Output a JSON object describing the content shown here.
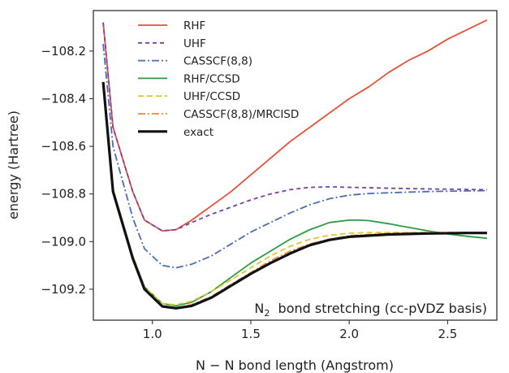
{
  "chart_data": {
    "type": "line",
    "xlabel": "N − N  bond length (Angstrom)",
    "ylabel": "energy (Hartree)",
    "xlim": [
      0.7,
      2.75
    ],
    "ylim": [
      -109.33,
      -108.03
    ],
    "xticks": [
      1.0,
      1.5,
      2.0,
      2.5
    ],
    "xtick_labels": [
      "1.0",
      "1.5",
      "2.0",
      "2.5"
    ],
    "yticks": [
      -108.2,
      -108.4,
      -108.6,
      -108.8,
      -109.0,
      -109.2
    ],
    "ytick_labels": [
      "−108.2",
      "−108.4",
      "−108.6",
      "−108.8",
      "−109.0",
      "−109.2"
    ],
    "legend_position": "top-left",
    "annotation": {
      "text_main": "N",
      "text_sub": "2",
      "text_rest": "  bond stretching (cc-pVDZ basis)",
      "position": "bottom-right"
    },
    "series": [
      {
        "name": "RHF",
        "color": "#e8503a",
        "dash": "solid",
        "width": 1.8,
        "x": [
          0.75,
          0.8,
          0.9,
          0.96,
          1.05,
          1.12,
          1.2,
          1.3,
          1.4,
          1.5,
          1.6,
          1.7,
          1.8,
          1.9,
          2.0,
          2.1,
          2.2,
          2.3,
          2.4,
          2.5,
          2.6,
          2.7
        ],
        "y": [
          -108.08,
          -108.52,
          -108.79,
          -108.91,
          -108.955,
          -108.95,
          -108.91,
          -108.85,
          -108.79,
          -108.72,
          -108.65,
          -108.58,
          -108.52,
          -108.46,
          -108.4,
          -108.35,
          -108.29,
          -108.24,
          -108.2,
          -108.15,
          -108.11,
          -108.07
        ]
      },
      {
        "name": "UHF",
        "color": "#7b3fa6",
        "dash": "5,4",
        "width": 1.8,
        "x": [
          0.75,
          0.8,
          0.9,
          0.96,
          1.05,
          1.12,
          1.2,
          1.3,
          1.4,
          1.5,
          1.6,
          1.7,
          1.8,
          1.9,
          2.0,
          2.2,
          2.4,
          2.6,
          2.7
        ],
        "y": [
          -108.08,
          -108.52,
          -108.79,
          -108.91,
          -108.955,
          -108.95,
          -108.92,
          -108.885,
          -108.855,
          -108.825,
          -108.8,
          -108.782,
          -108.772,
          -108.77,
          -108.772,
          -108.776,
          -108.779,
          -108.781,
          -108.782
        ]
      },
      {
        "name": "CASSCF(8,8)",
        "color": "#4a6fae",
        "dash": "9,3,2,3",
        "width": 1.8,
        "x": [
          0.75,
          0.8,
          0.9,
          0.96,
          1.05,
          1.12,
          1.2,
          1.3,
          1.4,
          1.5,
          1.6,
          1.7,
          1.8,
          1.9,
          2.0,
          2.1,
          2.2,
          2.4,
          2.6,
          2.7
        ],
        "y": [
          -108.17,
          -108.6,
          -108.9,
          -109.03,
          -109.1,
          -109.11,
          -109.095,
          -109.06,
          -109.01,
          -108.96,
          -108.92,
          -108.88,
          -108.845,
          -108.82,
          -108.805,
          -108.798,
          -108.795,
          -108.79,
          -108.787,
          -108.786
        ]
      },
      {
        "name": "RHF/CCSD",
        "color": "#2e9a44",
        "dash": "solid",
        "width": 1.8,
        "x": [
          0.75,
          0.8,
          0.9,
          0.96,
          1.05,
          1.12,
          1.2,
          1.3,
          1.4,
          1.5,
          1.6,
          1.7,
          1.8,
          1.9,
          2.0,
          2.05,
          2.1,
          2.2,
          2.3,
          2.4,
          2.5,
          2.6,
          2.7
        ],
        "y": [
          -108.33,
          -108.78,
          -109.06,
          -109.19,
          -109.26,
          -109.27,
          -109.255,
          -109.21,
          -109.15,
          -109.09,
          -109.04,
          -108.99,
          -108.95,
          -108.92,
          -108.91,
          -108.91,
          -108.912,
          -108.925,
          -108.94,
          -108.955,
          -108.968,
          -108.978,
          -108.986
        ]
      },
      {
        "name": "UHF/CCSD",
        "color": "#e3c531",
        "dash": "7,4",
        "width": 1.8,
        "x": [
          0.75,
          0.8,
          0.9,
          0.96,
          1.05,
          1.12,
          1.2,
          1.3,
          1.4,
          1.5,
          1.6,
          1.7,
          1.8,
          1.9,
          2.0,
          2.1,
          2.2,
          2.4,
          2.6,
          2.7
        ],
        "y": [
          -108.33,
          -108.78,
          -109.06,
          -109.19,
          -109.26,
          -109.265,
          -109.25,
          -109.21,
          -109.16,
          -109.11,
          -109.06,
          -109.02,
          -108.99,
          -108.973,
          -108.965,
          -108.962,
          -108.962,
          -108.962,
          -108.962,
          -108.962
        ]
      },
      {
        "name": "CASSCF(8,8)/MRCISD",
        "color": "#f08a3c",
        "dash": "9,3,2,3",
        "width": 1.8,
        "x": [
          0.75,
          0.8,
          0.9,
          0.96,
          1.05,
          1.12,
          1.2,
          1.3,
          1.4,
          1.5,
          1.6,
          1.7,
          1.8,
          1.9,
          2.0,
          2.2,
          2.4,
          2.6,
          2.7
        ],
        "y": [
          -108.33,
          -108.79,
          -109.07,
          -109.2,
          -109.27,
          -109.278,
          -109.265,
          -109.23,
          -109.18,
          -109.13,
          -109.08,
          -109.04,
          -109.01,
          -108.99,
          -108.975,
          -108.966,
          -108.963,
          -108.962,
          -108.962
        ]
      },
      {
        "name": "exact",
        "color": "#111111",
        "dash": "solid",
        "width": 3.2,
        "x": [
          0.75,
          0.8,
          0.9,
          0.96,
          1.05,
          1.12,
          1.2,
          1.3,
          1.4,
          1.5,
          1.6,
          1.7,
          1.8,
          1.9,
          2.0,
          2.2,
          2.4,
          2.6,
          2.7
        ],
        "y": [
          -108.33,
          -108.79,
          -109.07,
          -109.2,
          -109.272,
          -109.28,
          -109.27,
          -109.235,
          -109.185,
          -109.135,
          -109.09,
          -109.05,
          -109.015,
          -108.993,
          -108.98,
          -108.97,
          -108.966,
          -108.964,
          -108.964
        ]
      }
    ]
  }
}
